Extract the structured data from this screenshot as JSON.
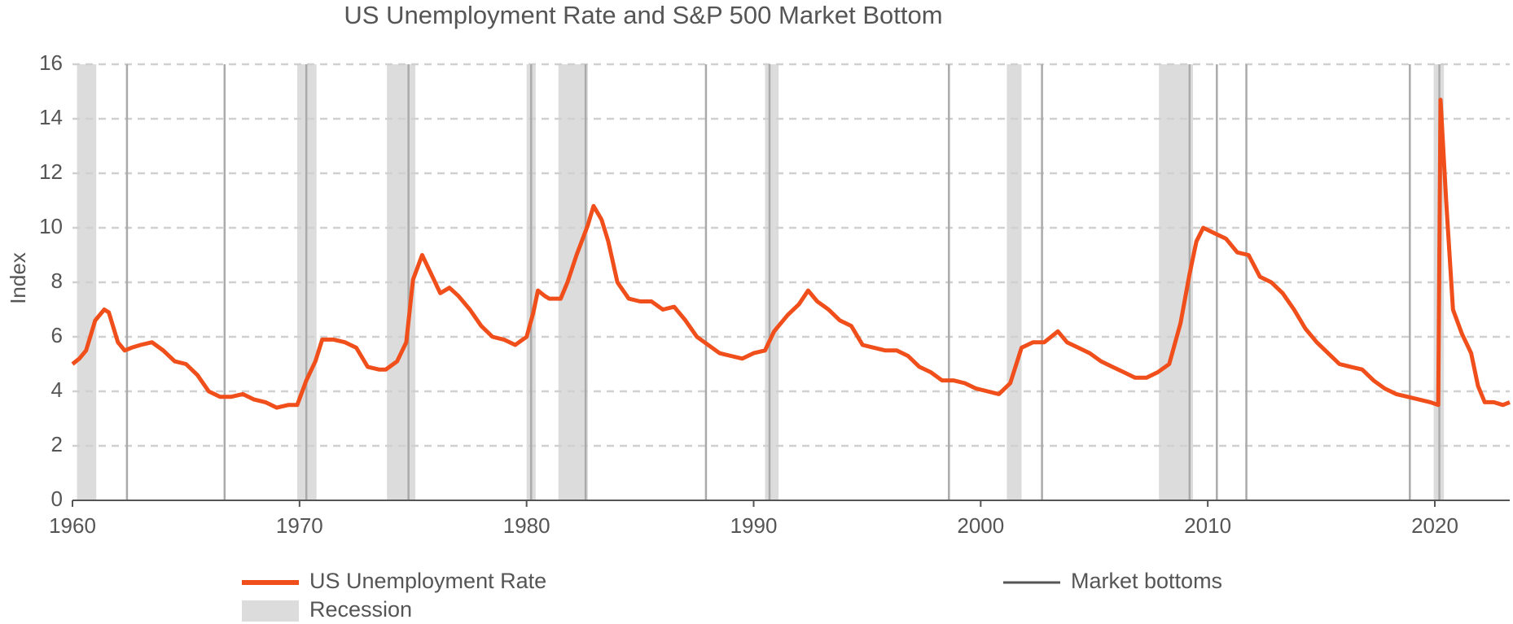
{
  "chart_data": {
    "type": "line",
    "title": "US Unemployment Rate and S&P 500 Market Bottom",
    "y_label": "Index",
    "xlim": [
      1960,
      2023.3
    ],
    "xticks": [
      1960,
      1970,
      1980,
      1990,
      2000,
      2010,
      2020
    ],
    "ylim": [
      0,
      16
    ],
    "yticks": [
      0,
      2,
      4,
      6,
      8,
      10,
      12,
      14,
      16
    ],
    "grid": true,
    "x": [
      1960.0,
      1960.3,
      1960.6,
      1961.0,
      1961.4,
      1961.6,
      1962.0,
      1962.3,
      1962.6,
      1963.0,
      1963.5,
      1964.0,
      1964.5,
      1965.0,
      1965.5,
      1966.0,
      1966.5,
      1967.0,
      1967.5,
      1968.0,
      1968.5,
      1969.0,
      1969.5,
      1969.9,
      1970.3,
      1970.7,
      1971.0,
      1971.5,
      1972.0,
      1972.5,
      1973.0,
      1973.5,
      1973.8,
      1974.3,
      1974.7,
      1975.0,
      1975.4,
      1975.8,
      1976.2,
      1976.6,
      1977.0,
      1977.5,
      1978.0,
      1978.5,
      1979.0,
      1979.5,
      1980.0,
      1980.3,
      1980.5,
      1980.8,
      1981.0,
      1981.5,
      1981.8,
      1982.2,
      1982.7,
      1982.95,
      1983.3,
      1983.6,
      1984.0,
      1984.5,
      1985.0,
      1985.5,
      1986.0,
      1986.5,
      1987.0,
      1987.5,
      1988.0,
      1988.5,
      1989.0,
      1989.5,
      1990.0,
      1990.5,
      1990.9,
      1991.5,
      1992.0,
      1992.4,
      1992.8,
      1993.3,
      1993.8,
      1994.3,
      1994.8,
      1995.3,
      1995.8,
      1996.3,
      1996.8,
      1997.3,
      1997.8,
      1998.3,
      1998.8,
      1999.3,
      1999.8,
      2000.3,
      2000.8,
      2001.3,
      2001.8,
      2002.3,
      2002.8,
      2003.4,
      2003.8,
      2004.3,
      2004.8,
      2005.3,
      2005.8,
      2006.3,
      2006.8,
      2007.3,
      2007.8,
      2008.3,
      2008.8,
      2009.2,
      2009.5,
      2009.8,
      2010.3,
      2010.8,
      2011.3,
      2011.8,
      2012.3,
      2012.8,
      2013.3,
      2013.8,
      2014.3,
      2014.8,
      2015.3,
      2015.8,
      2016.3,
      2016.8,
      2017.3,
      2017.8,
      2018.3,
      2018.8,
      2019.3,
      2019.8,
      2020.15,
      2020.25,
      2020.5,
      2020.8,
      2021.2,
      2021.6,
      2021.9,
      2022.2,
      2022.6,
      2023.0,
      2023.3
    ],
    "series": [
      {
        "name": "US Unemployment Rate",
        "color": "#f04e1a",
        "values": [
          5.0,
          5.2,
          5.5,
          6.6,
          7.0,
          6.9,
          5.8,
          5.5,
          5.6,
          5.7,
          5.8,
          5.5,
          5.1,
          5.0,
          4.6,
          4.0,
          3.8,
          3.8,
          3.9,
          3.7,
          3.6,
          3.4,
          3.5,
          3.5,
          4.4,
          5.1,
          5.9,
          5.9,
          5.8,
          5.6,
          4.9,
          4.8,
          4.8,
          5.1,
          5.8,
          8.1,
          9.0,
          8.3,
          7.6,
          7.8,
          7.5,
          7.0,
          6.4,
          6.0,
          5.9,
          5.7,
          6.0,
          6.9,
          7.7,
          7.5,
          7.4,
          7.4,
          8.0,
          9.0,
          10.1,
          10.8,
          10.3,
          9.5,
          8.0,
          7.4,
          7.3,
          7.3,
          7.0,
          7.1,
          6.6,
          6.0,
          5.7,
          5.4,
          5.3,
          5.2,
          5.4,
          5.5,
          6.2,
          6.8,
          7.2,
          7.7,
          7.3,
          7.0,
          6.6,
          6.4,
          5.7,
          5.6,
          5.5,
          5.5,
          5.3,
          4.9,
          4.7,
          4.4,
          4.4,
          4.3,
          4.1,
          4.0,
          3.9,
          4.3,
          5.6,
          5.8,
          5.8,
          6.2,
          5.8,
          5.6,
          5.4,
          5.1,
          4.9,
          4.7,
          4.5,
          4.5,
          4.7,
          5.0,
          6.5,
          8.3,
          9.5,
          10.0,
          9.8,
          9.6,
          9.1,
          9.0,
          8.2,
          8.0,
          7.6,
          7.0,
          6.3,
          5.8,
          5.4,
          5.0,
          4.9,
          4.8,
          4.4,
          4.1,
          3.9,
          3.8,
          3.7,
          3.6,
          3.5,
          14.7,
          11.0,
          7.0,
          6.1,
          5.4,
          4.2,
          3.6,
          3.6,
          3.5,
          3.6
        ]
      }
    ],
    "recessions": {
      "name": "Recession",
      "color": "#dcdcdc",
      "spans": [
        [
          1960.2,
          1961.05
        ],
        [
          1969.9,
          1970.75
        ],
        [
          1973.85,
          1975.1
        ],
        [
          1980.0,
          1980.4
        ],
        [
          1981.4,
          1982.7
        ],
        [
          1990.5,
          1991.1
        ],
        [
          2001.15,
          2001.8
        ],
        [
          2007.85,
          2009.35
        ],
        [
          2019.95,
          2020.4
        ]
      ]
    },
    "market_bottoms": {
      "name": "Market bottoms",
      "color": "#aaaaaa",
      "x": [
        1962.4,
        1966.7,
        1970.3,
        1974.8,
        1980.2,
        1982.6,
        1987.9,
        1990.7,
        1998.6,
        2002.7,
        2009.2,
        2010.4,
        2011.7,
        2018.9,
        2020.2
      ]
    }
  }
}
